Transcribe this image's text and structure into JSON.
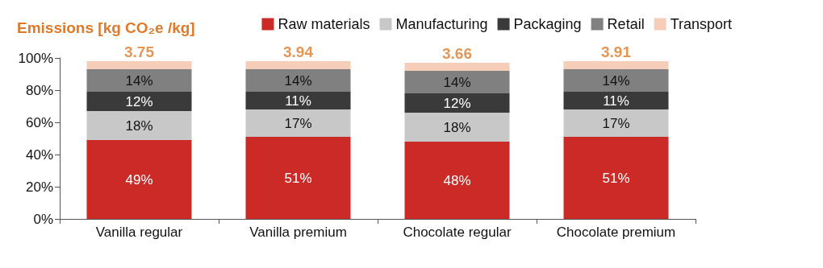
{
  "chart_data": {
    "type": "bar",
    "title": "Emissions [kg CO₂e /kg]",
    "stacked": true,
    "categories": [
      "Vanilla regular",
      "Vanilla premium",
      "Chocolate regular",
      "Chocolate premium"
    ],
    "series": [
      {
        "name": "Raw materials",
        "color": "#cc2a26",
        "values": [
          49,
          51,
          48,
          51
        ],
        "value_labels": [
          "49%",
          "51%",
          "48%",
          "51%"
        ]
      },
      {
        "name": "Manufacturing",
        "color": "#c8c8c8",
        "values": [
          18,
          17,
          18,
          17
        ],
        "value_labels": [
          "18%",
          "17%",
          "18%",
          "17%"
        ]
      },
      {
        "name": "Packaging",
        "color": "#3a3a3a",
        "values": [
          12,
          11,
          12,
          11
        ],
        "value_labels": [
          "12%",
          "11%",
          "12%",
          "11%"
        ]
      },
      {
        "name": "Retail",
        "color": "#808080",
        "values": [
          14,
          14,
          14,
          14
        ],
        "value_labels": [
          "14%",
          "14%",
          "14%",
          "14%"
        ]
      },
      {
        "name": "Transport",
        "color": "#f6cdb9",
        "values": [
          5,
          5,
          5,
          5
        ],
        "value_labels": [
          null,
          null,
          null,
          null
        ]
      }
    ],
    "annotations": [
      {
        "text": "3.75",
        "x": "Vanilla regular",
        "y": 98
      },
      {
        "text": "3.94",
        "x": "Vanilla premium",
        "y": 98
      },
      {
        "text": "3.66",
        "x": "Chocolate regular",
        "y": 97
      },
      {
        "text": "3.91",
        "x": "Chocolate premium",
        "y": 98
      }
    ],
    "ylim": [
      0,
      100
    ],
    "yticks": [
      {
        "value": 0,
        "label": "0%"
      },
      {
        "value": 20,
        "label": "20%"
      },
      {
        "value": 40,
        "label": "40%"
      },
      {
        "value": 60,
        "label": "60%"
      },
      {
        "value": 80,
        "label": "80%"
      },
      {
        "value": 100,
        "label": "100%"
      }
    ],
    "grid": false,
    "legend": "top right"
  }
}
